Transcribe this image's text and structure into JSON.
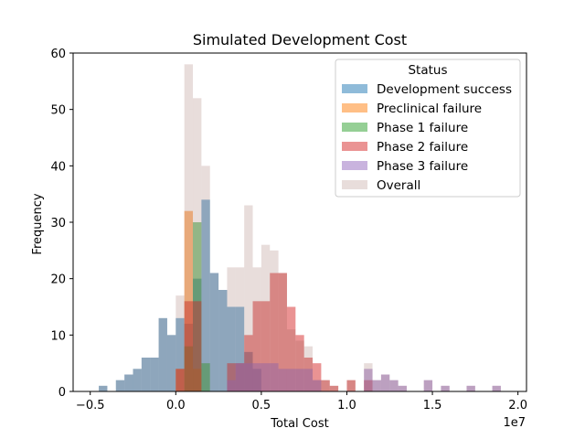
{
  "chart_data": {
    "type": "bar",
    "subtype": "overlaid-histogram",
    "title": "Simulated Development Cost",
    "xlabel": "Total Cost",
    "ylabel": "Frequency",
    "x_offset_label": "1e7",
    "x_scale_multiplier": 10000000,
    "xlim": [
      -0.6,
      2.05
    ],
    "ylim": [
      0,
      60
    ],
    "x_ticks": [
      -0.5,
      0.0,
      0.5,
      1.0,
      1.5,
      2.0
    ],
    "x_tick_labels": [
      "−0.5",
      "0.0",
      "0.5",
      "1.0",
      "1.5",
      "2.0"
    ],
    "y_ticks": [
      0,
      10,
      20,
      30,
      40,
      50,
      60
    ],
    "y_tick_labels": [
      "0",
      "10",
      "20",
      "30",
      "40",
      "50",
      "60"
    ],
    "grid": false,
    "legend": {
      "title": "Status",
      "placement": "top-right"
    },
    "bin_width": 0.05,
    "series": [
      {
        "name": "Development success",
        "color": "#1f77b4",
        "opacity": 0.5,
        "bins": [
          [
            -0.425,
            1
          ],
          [
            -0.325,
            2
          ],
          [
            -0.275,
            3
          ],
          [
            -0.225,
            4
          ],
          [
            -0.175,
            6
          ],
          [
            -0.125,
            6
          ],
          [
            -0.075,
            13
          ],
          [
            -0.025,
            10
          ],
          [
            0.025,
            13
          ],
          [
            0.075,
            12
          ],
          [
            0.125,
            20
          ],
          [
            0.175,
            34
          ],
          [
            0.225,
            21
          ],
          [
            0.275,
            18
          ],
          [
            0.325,
            15
          ],
          [
            0.375,
            15
          ],
          [
            0.425,
            7
          ],
          [
            0.475,
            4
          ]
        ]
      },
      {
        "name": "Preclinical failure",
        "color": "#ff7f0e",
        "opacity": 0.5,
        "bins": [
          [
            0.025,
            4
          ],
          [
            0.075,
            32
          ],
          [
            0.125,
            4
          ]
        ]
      },
      {
        "name": "Phase 1 failure",
        "color": "#2ca02c",
        "opacity": 0.5,
        "bins": [
          [
            0.075,
            8
          ],
          [
            0.125,
            30
          ],
          [
            0.175,
            5
          ]
        ]
      },
      {
        "name": "Phase 2 failure",
        "color": "#d62728",
        "opacity": 0.5,
        "bins": [
          [
            0.025,
            4
          ],
          [
            0.075,
            16
          ],
          [
            0.125,
            16
          ],
          [
            0.325,
            5
          ],
          [
            0.375,
            5
          ],
          [
            0.425,
            10
          ],
          [
            0.475,
            16
          ],
          [
            0.525,
            16
          ],
          [
            0.575,
            21
          ],
          [
            0.625,
            21
          ],
          [
            0.675,
            15
          ],
          [
            0.725,
            10
          ],
          [
            0.775,
            6
          ],
          [
            0.825,
            5
          ],
          [
            0.875,
            2
          ],
          [
            0.925,
            1
          ],
          [
            1.025,
            2
          ],
          [
            1.125,
            2
          ]
        ]
      },
      {
        "name": "Phase 3 failure",
        "color": "#9467bd",
        "opacity": 0.5,
        "bins": [
          [
            0.325,
            2
          ],
          [
            0.375,
            5
          ],
          [
            0.425,
            5
          ],
          [
            0.475,
            5
          ],
          [
            0.525,
            5
          ],
          [
            0.575,
            5
          ],
          [
            0.625,
            4
          ],
          [
            0.675,
            4
          ],
          [
            0.725,
            4
          ],
          [
            0.775,
            4
          ],
          [
            0.825,
            2
          ],
          [
            1.125,
            4
          ],
          [
            1.175,
            2
          ],
          [
            1.225,
            3
          ],
          [
            1.275,
            2
          ],
          [
            1.325,
            1
          ],
          [
            1.475,
            2
          ],
          [
            1.575,
            1
          ],
          [
            1.725,
            1
          ],
          [
            1.875,
            1
          ]
        ]
      },
      {
        "name": "Overall",
        "color": "#8c564b",
        "opacity": 0.2,
        "bins": [
          [
            -0.425,
            1
          ],
          [
            -0.325,
            2
          ],
          [
            -0.275,
            3
          ],
          [
            -0.225,
            4
          ],
          [
            -0.175,
            6
          ],
          [
            -0.125,
            6
          ],
          [
            -0.075,
            13
          ],
          [
            -0.025,
            10
          ],
          [
            0.025,
            17
          ],
          [
            0.075,
            58
          ],
          [
            0.125,
            52
          ],
          [
            0.175,
            40
          ],
          [
            0.225,
            21
          ],
          [
            0.275,
            18
          ],
          [
            0.325,
            22
          ],
          [
            0.375,
            22
          ],
          [
            0.425,
            33
          ],
          [
            0.475,
            22
          ],
          [
            0.525,
            26
          ],
          [
            0.575,
            25
          ],
          [
            0.625,
            21
          ],
          [
            0.675,
            11
          ],
          [
            0.725,
            9
          ],
          [
            0.775,
            8
          ],
          [
            0.825,
            2
          ],
          [
            0.875,
            2
          ],
          [
            0.925,
            1
          ],
          [
            1.025,
            2
          ],
          [
            1.125,
            5
          ],
          [
            1.175,
            2
          ],
          [
            1.225,
            3
          ],
          [
            1.275,
            2
          ],
          [
            1.325,
            1
          ],
          [
            1.475,
            2
          ],
          [
            1.575,
            1
          ],
          [
            1.725,
            1
          ],
          [
            1.875,
            1
          ]
        ]
      }
    ]
  }
}
